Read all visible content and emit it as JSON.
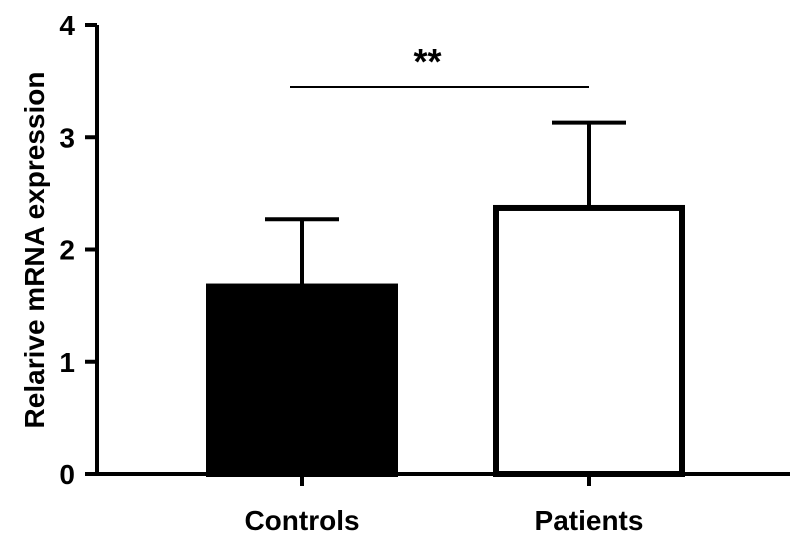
{
  "chart_data": {
    "type": "bar",
    "categories": [
      "Controls",
      "Patients"
    ],
    "values": [
      1.67,
      2.37
    ],
    "error_upper": [
      2.27,
      3.13
    ],
    "bar_colors": [
      "#000000",
      "#ffffff"
    ],
    "bar_stroke": "#000000",
    "ylabel": "Relarive mRNA expression",
    "yticks": [
      "0",
      "1",
      "2",
      "3",
      "4"
    ],
    "ylim": [
      0,
      4
    ],
    "significance": {
      "label": "**",
      "between": [
        "Controls",
        "Patients"
      ]
    },
    "grid": false
  }
}
